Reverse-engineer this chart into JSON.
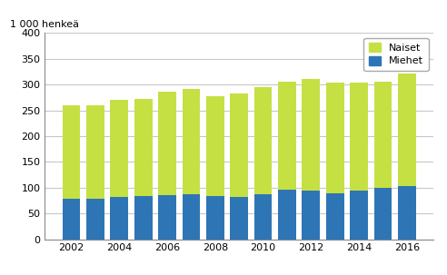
{
  "years": [
    2002,
    2003,
    2004,
    2005,
    2006,
    2007,
    2008,
    2009,
    2010,
    2011,
    2012,
    2013,
    2014,
    2015,
    2016
  ],
  "miehet": [
    78,
    79,
    82,
    84,
    86,
    87,
    84,
    82,
    87,
    96,
    95,
    89,
    94,
    99,
    103
  ],
  "naiset": [
    181,
    180,
    189,
    189,
    200,
    205,
    194,
    200,
    208,
    210,
    215,
    214,
    210,
    206,
    218
  ],
  "color_miehet": "#2e75b6",
  "color_naiset": "#c5e043",
  "ylabel": "1 000 henkeä",
  "ylim": [
    0,
    400
  ],
  "yticks": [
    0,
    50,
    100,
    150,
    200,
    250,
    300,
    350,
    400
  ],
  "background_color": "#ffffff",
  "grid_color": "#c8c8c8"
}
